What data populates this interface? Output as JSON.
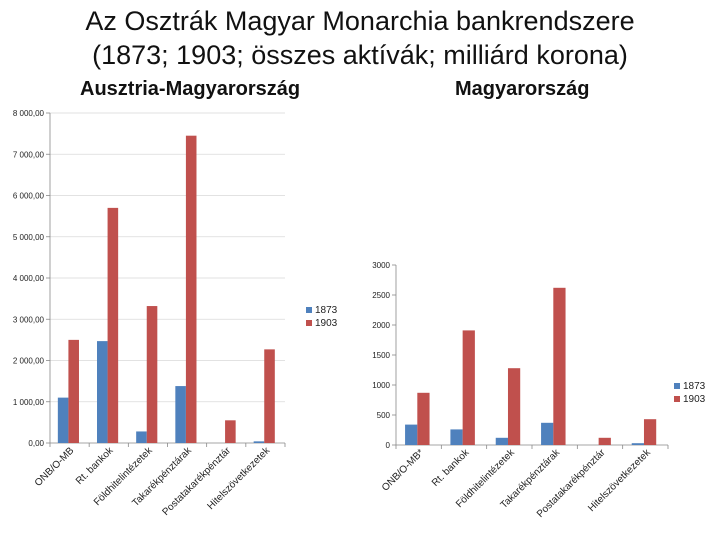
{
  "page": {
    "title_line1": "Az Osztrák Magyar Monarchia bankrendszere",
    "title_line2": "(1873; 1903; összes aktívák; milliárd korona)"
  },
  "chart_data": [
    {
      "type": "bar",
      "title": "Ausztria-Magyarország",
      "categories": [
        "ONB/O-MB",
        "Rt. bankok",
        "Földhitelintézetek",
        "Takarékpénztárak",
        "Postatakarékpénztár",
        "Hitelszövetkezetek"
      ],
      "series": [
        {
          "name": "1873",
          "values": [
            1100,
            2470,
            280,
            1380,
            0,
            40
          ]
        },
        {
          "name": "1903",
          "values": [
            2500,
            5700,
            3320,
            7450,
            550,
            2270
          ]
        }
      ],
      "ylim": [
        0,
        8000
      ],
      "yticks": [
        "0,00",
        "1 000,00",
        "2 000,00",
        "3 000,00",
        "4 000,00",
        "5 000,00",
        "6 000,00",
        "7 000,00",
        "8 000,00"
      ],
      "colors": [
        "#4f81bd",
        "#c0504d"
      ],
      "legend": "right",
      "grid": true
    },
    {
      "type": "bar",
      "title": "Magyarország",
      "categories": [
        "ONB/O-MB*",
        "Rt. bankok",
        "Földhitelintézetek",
        "Takarékpénztárak",
        "Postatakarékpénztár",
        "Hitelszövetkezetek"
      ],
      "series": [
        {
          "name": "1873",
          "values": [
            340,
            260,
            120,
            370,
            0,
            30
          ]
        },
        {
          "name": "1903",
          "values": [
            870,
            1910,
            1280,
            2620,
            120,
            430
          ]
        }
      ],
      "ylim": [
        0,
        3000
      ],
      "yticks": [
        "0",
        "500",
        "1000",
        "1500",
        "2000",
        "2500",
        "3000"
      ],
      "colors": [
        "#4f81bd",
        "#c0504d"
      ],
      "legend": "right",
      "grid": false
    }
  ]
}
